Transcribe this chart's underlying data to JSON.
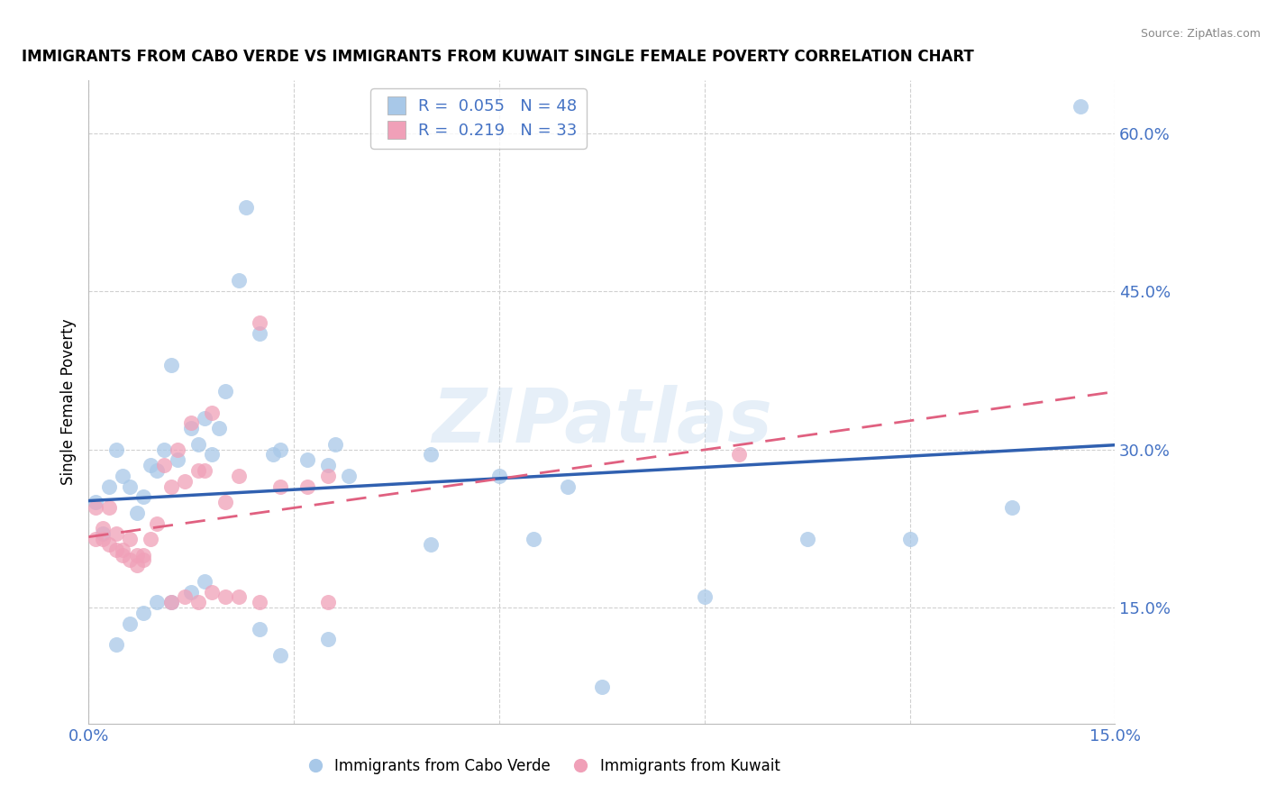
{
  "title": "IMMIGRANTS FROM CABO VERDE VS IMMIGRANTS FROM KUWAIT SINGLE FEMALE POVERTY CORRELATION CHART",
  "source": "Source: ZipAtlas.com",
  "ylabel": "Single Female Poverty",
  "legend_labels": [
    "Immigrants from Cabo Verde",
    "Immigrants from Kuwait"
  ],
  "legend_R": [
    0.055,
    0.219
  ],
  "legend_N": [
    48,
    33
  ],
  "color_blue": "#a8c8e8",
  "color_pink": "#f0a0b8",
  "line_color_blue": "#3060b0",
  "line_color_pink": "#e06080",
  "axis_color": "#4472c4",
  "xlim": [
    0.0,
    0.15
  ],
  "ylim": [
    0.04,
    0.65
  ],
  "yticks": [
    0.15,
    0.3,
    0.45,
    0.6
  ],
  "ytick_labels": [
    "15.0%",
    "30.0%",
    "45.0%",
    "60.0%"
  ],
  "xticks": [
    0.0,
    0.03,
    0.06,
    0.09,
    0.12,
    0.15
  ],
  "xtick_labels": [
    "0.0%",
    "",
    "",
    "",
    "",
    "15.0%"
  ],
  "cabo_x": [
    0.001,
    0.002,
    0.003,
    0.004,
    0.005,
    0.006,
    0.007,
    0.008,
    0.009,
    0.01,
    0.011,
    0.012,
    0.013,
    0.015,
    0.016,
    0.017,
    0.018,
    0.019,
    0.02,
    0.022,
    0.023,
    0.025,
    0.027,
    0.028,
    0.032,
    0.035,
    0.036,
    0.038,
    0.05,
    0.06,
    0.065,
    0.07,
    0.09,
    0.105,
    0.12,
    0.135,
    0.145
  ],
  "cabo_y": [
    0.25,
    0.22,
    0.265,
    0.3,
    0.275,
    0.265,
    0.24,
    0.255,
    0.285,
    0.28,
    0.3,
    0.38,
    0.29,
    0.32,
    0.305,
    0.33,
    0.295,
    0.32,
    0.355,
    0.46,
    0.53,
    0.41,
    0.295,
    0.3,
    0.29,
    0.285,
    0.305,
    0.275,
    0.295,
    0.275,
    0.215,
    0.265,
    0.16,
    0.215,
    0.215,
    0.245,
    0.625
  ],
  "cabo_x2": [
    0.004,
    0.006,
    0.008,
    0.01,
    0.012,
    0.015,
    0.017,
    0.025,
    0.028,
    0.035,
    0.05,
    0.075
  ],
  "cabo_y2": [
    0.115,
    0.135,
    0.145,
    0.155,
    0.155,
    0.165,
    0.175,
    0.13,
    0.105,
    0.12,
    0.21,
    0.075
  ],
  "kuwait_x": [
    0.001,
    0.002,
    0.003,
    0.004,
    0.005,
    0.006,
    0.007,
    0.008,
    0.009,
    0.01,
    0.011,
    0.012,
    0.013,
    0.014,
    0.015,
    0.016,
    0.017,
    0.018,
    0.02,
    0.022,
    0.025,
    0.028,
    0.032,
    0.035,
    0.095
  ],
  "kuwait_y": [
    0.245,
    0.225,
    0.245,
    0.22,
    0.205,
    0.215,
    0.2,
    0.2,
    0.215,
    0.23,
    0.285,
    0.265,
    0.3,
    0.27,
    0.325,
    0.28,
    0.28,
    0.335,
    0.25,
    0.275,
    0.42,
    0.265,
    0.265,
    0.275,
    0.295
  ],
  "kuwait_x2": [
    0.001,
    0.002,
    0.003,
    0.004,
    0.005,
    0.006,
    0.007,
    0.008,
    0.012,
    0.014,
    0.016,
    0.018,
    0.02,
    0.022,
    0.025,
    0.035
  ],
  "kuwait_y2": [
    0.215,
    0.215,
    0.21,
    0.205,
    0.2,
    0.195,
    0.19,
    0.195,
    0.155,
    0.16,
    0.155,
    0.165,
    0.16,
    0.16,
    0.155,
    0.155
  ],
  "background_color": "#ffffff",
  "grid_color": "#d0d0d0"
}
